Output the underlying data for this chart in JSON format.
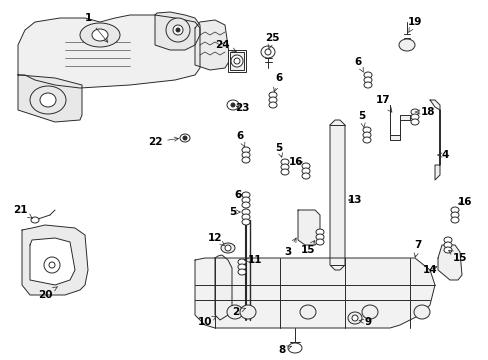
{
  "background_color": "#ffffff",
  "line_color": "#2a2a2a",
  "fig_width": 4.89,
  "fig_height": 3.6,
  "dpi": 100,
  "label_fontsize": 7.5,
  "arrow_lw": 0.5,
  "part_lw": 0.7
}
